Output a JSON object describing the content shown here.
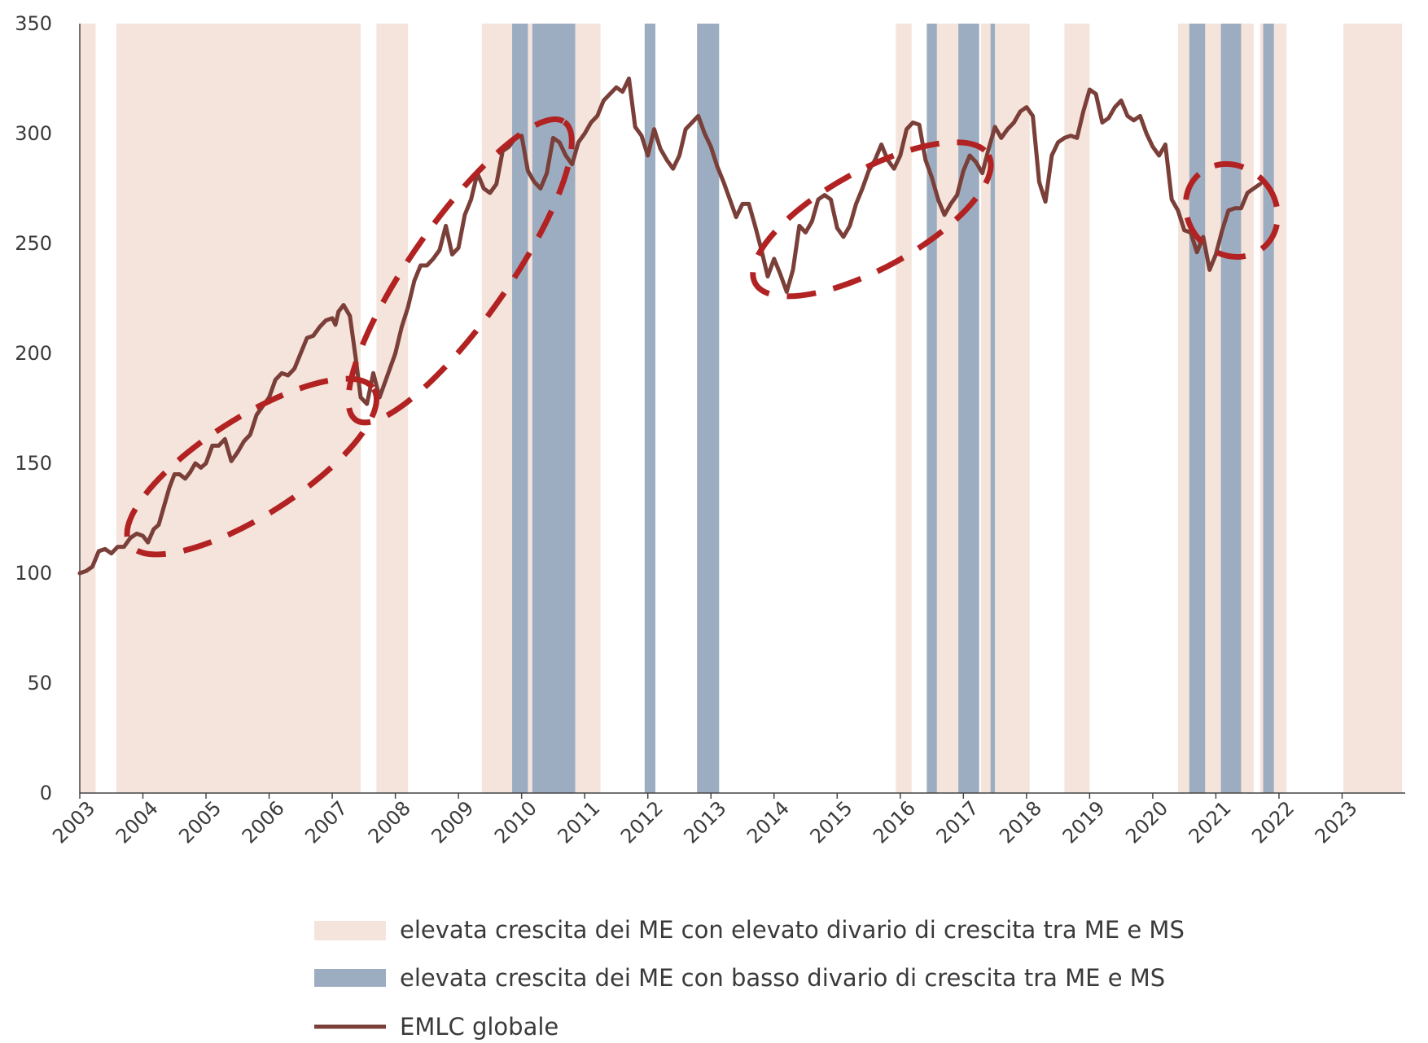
{
  "chart_data": {
    "type": "line",
    "title": "",
    "xlabel": "",
    "ylabel": "",
    "ylim": [
      0,
      350
    ],
    "yticks": [
      "0",
      "50",
      "100",
      "150",
      "200",
      "250",
      "300",
      "350"
    ],
    "xlim": [
      2003.0,
      2024.0
    ],
    "xtick_labels": [
      "2003",
      "2004",
      "2005",
      "2006",
      "2007",
      "2008",
      "2009",
      "2010",
      "2011",
      "2012",
      "2013",
      "2014",
      "2015",
      "2016",
      "2017",
      "2018",
      "2019",
      "2020",
      "2021",
      "2022",
      "2023"
    ],
    "legend": [
      {
        "key": "high_gap",
        "label": "elevata crescita dei ME con elevato divario di crescita tra ME e MS",
        "color": "#f5e4dc"
      },
      {
        "key": "low_gap",
        "label": "elevata crescita dei ME con basso divario di crescita tra ME e MS",
        "color": "#9dadc1"
      },
      {
        "key": "emlc",
        "label": "EMLC globale",
        "color": "#7a3f38"
      }
    ],
    "shaded_periods": {
      "high_gap": [
        [
          2003.0,
          2003.25
        ],
        [
          2003.58,
          2007.45
        ],
        [
          2007.7,
          2008.2
        ],
        [
          2009.37,
          2011.25
        ],
        [
          2015.93,
          2016.18
        ],
        [
          2016.55,
          2017.0
        ],
        [
          2017.28,
          2017.45
        ],
        [
          2017.5,
          2018.05
        ],
        [
          2018.6,
          2019.0
        ],
        [
          2020.4,
          2021.6
        ],
        [
          2021.7,
          2022.12
        ],
        [
          2023.02,
          2023.95
        ]
      ],
      "low_gap": [
        [
          2009.85,
          2010.1
        ],
        [
          2010.17,
          2010.85
        ],
        [
          2011.95,
          2012.12
        ],
        [
          2012.78,
          2013.13
        ],
        [
          2016.42,
          2016.58
        ],
        [
          2016.92,
          2017.25
        ],
        [
          2017.43,
          2017.5
        ],
        [
          2020.58,
          2020.83
        ],
        [
          2021.08,
          2021.4
        ],
        [
          2021.75,
          2021.92
        ]
      ]
    },
    "series": [
      {
        "name": "EMLC globale",
        "color": "#7a3f38",
        "points": [
          [
            2003.0,
            100
          ],
          [
            2003.1,
            101
          ],
          [
            2003.2,
            103
          ],
          [
            2003.3,
            110
          ],
          [
            2003.4,
            111
          ],
          [
            2003.5,
            109
          ],
          [
            2003.6,
            112
          ],
          [
            2003.7,
            112
          ],
          [
            2003.8,
            116
          ],
          [
            2003.9,
            118
          ],
          [
            2004.0,
            117
          ],
          [
            2004.08,
            114
          ],
          [
            2004.17,
            120
          ],
          [
            2004.25,
            122
          ],
          [
            2004.33,
            130
          ],
          [
            2004.42,
            139
          ],
          [
            2004.5,
            145
          ],
          [
            2004.58,
            145
          ],
          [
            2004.67,
            143
          ],
          [
            2004.75,
            146
          ],
          [
            2004.83,
            150
          ],
          [
            2004.92,
            148
          ],
          [
            2005.0,
            150
          ],
          [
            2005.1,
            158
          ],
          [
            2005.2,
            158
          ],
          [
            2005.3,
            161
          ],
          [
            2005.4,
            151
          ],
          [
            2005.5,
            155
          ],
          [
            2005.6,
            160
          ],
          [
            2005.7,
            163
          ],
          [
            2005.8,
            172
          ],
          [
            2005.9,
            176
          ],
          [
            2006.0,
            180
          ],
          [
            2006.1,
            188
          ],
          [
            2006.2,
            191
          ],
          [
            2006.3,
            190
          ],
          [
            2006.4,
            193
          ],
          [
            2006.5,
            200
          ],
          [
            2006.6,
            207
          ],
          [
            2006.7,
            208
          ],
          [
            2006.8,
            212
          ],
          [
            2006.9,
            215
          ],
          [
            2007.0,
            216
          ],
          [
            2007.05,
            213
          ],
          [
            2007.1,
            219
          ],
          [
            2007.18,
            222
          ],
          [
            2007.28,
            217
          ],
          [
            2007.38,
            196
          ],
          [
            2007.45,
            180
          ],
          [
            2007.55,
            177
          ],
          [
            2007.65,
            191
          ],
          [
            2007.75,
            180
          ],
          [
            2007.85,
            188
          ],
          [
            2008.0,
            200
          ],
          [
            2008.1,
            212
          ],
          [
            2008.2,
            221
          ],
          [
            2008.3,
            233
          ],
          [
            2008.4,
            240
          ],
          [
            2008.5,
            240
          ],
          [
            2008.6,
            243
          ],
          [
            2008.7,
            247
          ],
          [
            2008.8,
            258
          ],
          [
            2008.9,
            245
          ],
          [
            2009.0,
            248
          ],
          [
            2009.1,
            263
          ],
          [
            2009.2,
            270
          ],
          [
            2009.3,
            282
          ],
          [
            2009.4,
            275
          ],
          [
            2009.5,
            273
          ],
          [
            2009.6,
            277
          ],
          [
            2009.7,
            292
          ],
          [
            2009.8,
            294
          ],
          [
            2009.9,
            298
          ],
          [
            2010.0,
            299
          ],
          [
            2010.1,
            283
          ],
          [
            2010.2,
            278
          ],
          [
            2010.3,
            275
          ],
          [
            2010.4,
            282
          ],
          [
            2010.5,
            298
          ],
          [
            2010.6,
            296
          ],
          [
            2010.7,
            290
          ],
          [
            2010.8,
            286
          ],
          [
            2010.9,
            296
          ],
          [
            2011.0,
            300
          ],
          [
            2011.1,
            305
          ],
          [
            2011.2,
            308
          ],
          [
            2011.3,
            315
          ],
          [
            2011.4,
            318
          ],
          [
            2011.5,
            321
          ],
          [
            2011.6,
            319
          ],
          [
            2011.7,
            325
          ],
          [
            2011.8,
            303
          ],
          [
            2011.9,
            299
          ],
          [
            2012.0,
            290
          ],
          [
            2012.1,
            302
          ],
          [
            2012.2,
            293
          ],
          [
            2012.3,
            288
          ],
          [
            2012.4,
            284
          ],
          [
            2012.5,
            290
          ],
          [
            2012.6,
            302
          ],
          [
            2012.7,
            305
          ],
          [
            2012.8,
            308
          ],
          [
            2012.9,
            300
          ],
          [
            2013.0,
            294
          ],
          [
            2013.1,
            285
          ],
          [
            2013.2,
            278
          ],
          [
            2013.3,
            270
          ],
          [
            2013.4,
            262
          ],
          [
            2013.5,
            268
          ],
          [
            2013.6,
            268
          ],
          [
            2013.7,
            258
          ],
          [
            2013.8,
            247
          ],
          [
            2013.9,
            235
          ],
          [
            2014.0,
            243
          ],
          [
            2014.1,
            236
          ],
          [
            2014.2,
            228
          ],
          [
            2014.3,
            238
          ],
          [
            2014.4,
            258
          ],
          [
            2014.5,
            255
          ],
          [
            2014.6,
            260
          ],
          [
            2014.7,
            270
          ],
          [
            2014.8,
            272
          ],
          [
            2014.9,
            270
          ],
          [
            2015.0,
            257
          ],
          [
            2015.1,
            253
          ],
          [
            2015.2,
            258
          ],
          [
            2015.3,
            268
          ],
          [
            2015.4,
            275
          ],
          [
            2015.5,
            283
          ],
          [
            2015.6,
            288
          ],
          [
            2015.7,
            295
          ],
          [
            2015.8,
            288
          ],
          [
            2015.9,
            284
          ],
          [
            2016.0,
            290
          ],
          [
            2016.1,
            302
          ],
          [
            2016.2,
            305
          ],
          [
            2016.3,
            304
          ],
          [
            2016.4,
            288
          ],
          [
            2016.5,
            280
          ],
          [
            2016.6,
            270
          ],
          [
            2016.7,
            263
          ],
          [
            2016.8,
            268
          ],
          [
            2016.9,
            272
          ],
          [
            2017.0,
            283
          ],
          [
            2017.1,
            290
          ],
          [
            2017.2,
            287
          ],
          [
            2017.3,
            282
          ],
          [
            2017.4,
            293
          ],
          [
            2017.5,
            303
          ],
          [
            2017.6,
            298
          ],
          [
            2017.7,
            302
          ],
          [
            2017.8,
            305
          ],
          [
            2017.9,
            310
          ],
          [
            2018.0,
            312
          ],
          [
            2018.1,
            308
          ],
          [
            2018.2,
            278
          ],
          [
            2018.3,
            269
          ],
          [
            2018.4,
            290
          ],
          [
            2018.5,
            296
          ],
          [
            2018.6,
            298
          ],
          [
            2018.7,
            299
          ],
          [
            2018.8,
            298
          ],
          [
            2018.9,
            310
          ],
          [
            2019.0,
            320
          ],
          [
            2019.1,
            318
          ],
          [
            2019.2,
            305
          ],
          [
            2019.3,
            307
          ],
          [
            2019.4,
            312
          ],
          [
            2019.5,
            315
          ],
          [
            2019.6,
            308
          ],
          [
            2019.7,
            306
          ],
          [
            2019.8,
            308
          ],
          [
            2019.9,
            300
          ],
          [
            2020.0,
            294
          ],
          [
            2020.1,
            290
          ],
          [
            2020.2,
            295
          ],
          [
            2020.3,
            270
          ],
          [
            2020.4,
            265
          ],
          [
            2020.5,
            256
          ],
          [
            2020.6,
            255
          ],
          [
            2020.7,
            246
          ],
          [
            2020.8,
            253
          ],
          [
            2020.9,
            238
          ],
          [
            2021.0,
            245
          ],
          [
            2021.1,
            256
          ],
          [
            2021.2,
            265
          ],
          [
            2021.3,
            266
          ],
          [
            2021.4,
            266
          ],
          [
            2021.5,
            273
          ],
          [
            2021.6,
            275
          ],
          [
            2021.7,
            277
          ]
        ]
      }
    ],
    "annotations": [
      {
        "type": "dashed-ellipse",
        "color": "#b22222",
        "around": [
          2004.0,
          2007.5
        ]
      },
      {
        "type": "dashed-ellipse",
        "color": "#b22222",
        "around": [
          2007.5,
          2010.5
        ]
      },
      {
        "type": "dashed-ellipse",
        "color": "#b22222",
        "around": [
          2013.9,
          2017.2
        ]
      },
      {
        "type": "dashed-ellipse",
        "color": "#b22222",
        "around": [
          2020.8,
          2022.1
        ]
      }
    ]
  }
}
